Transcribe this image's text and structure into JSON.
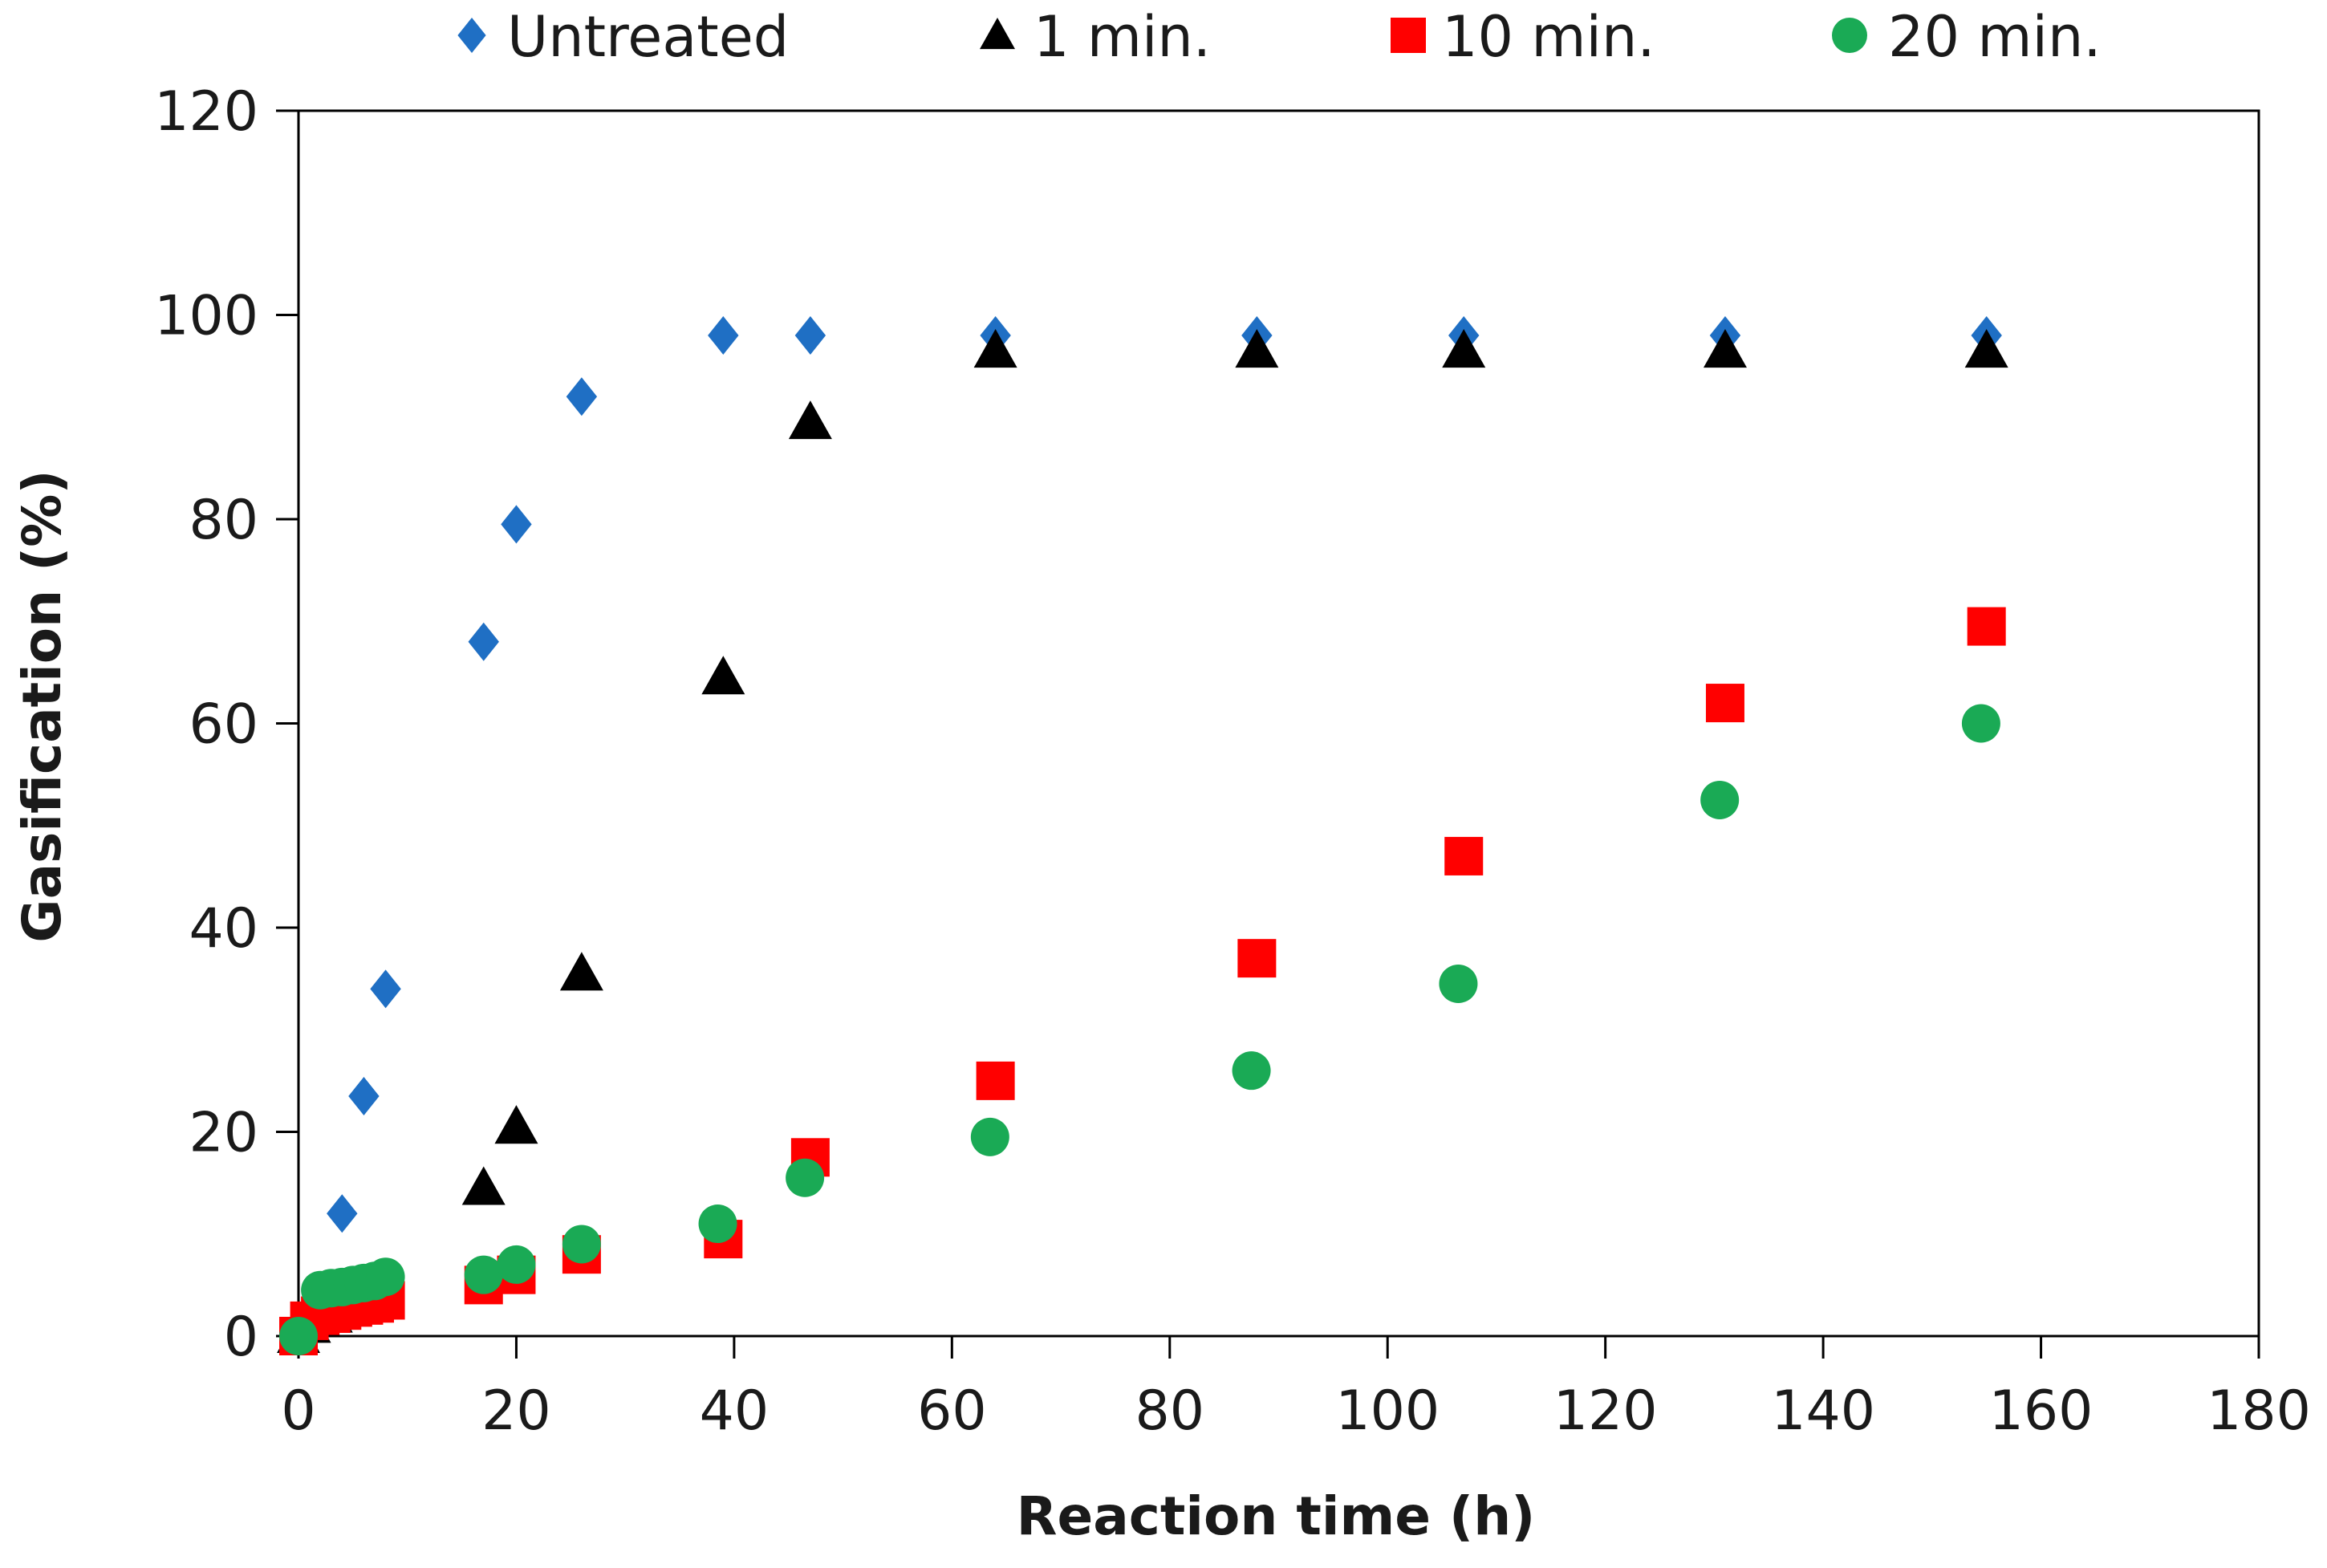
{
  "chart_data": {
    "type": "scatter",
    "title": "",
    "xlabel": "Reaction time (h)",
    "ylabel": "Gasification (%)",
    "xlim": [
      0,
      180
    ],
    "ylim": [
      0,
      120
    ],
    "xticks": [
      0,
      20,
      40,
      60,
      80,
      100,
      120,
      140,
      160,
      180
    ],
    "yticks": [
      0,
      20,
      40,
      60,
      80,
      100,
      120
    ],
    "grid": false,
    "legend_position": "top",
    "series": [
      {
        "name": "Untreated",
        "marker": "diamond",
        "color": "#1f6fc4",
        "x": [
          0,
          4,
          6,
          8,
          17,
          20,
          26,
          39,
          47,
          64,
          88,
          107,
          131,
          155
        ],
        "y": [
          0,
          12,
          23.5,
          34,
          68,
          79.5,
          92,
          98,
          98,
          98,
          98,
          98,
          98,
          98
        ]
      },
      {
        "name": "1 min.",
        "marker": "triangle",
        "color": "#000000",
        "x": [
          0,
          1,
          3,
          17,
          20,
          26,
          39,
          47,
          64,
          88,
          107,
          131,
          155
        ],
        "y": [
          0,
          1,
          2,
          14.5,
          20.5,
          35.5,
          64.5,
          89.5,
          96.5,
          96.5,
          96.5,
          96.5,
          96.5
        ]
      },
      {
        "name": "10 min.",
        "marker": "square",
        "color": "#ff0000",
        "x": [
          0,
          1,
          2,
          3,
          4,
          5,
          6,
          7,
          8,
          17,
          20,
          26,
          39,
          47,
          64,
          88,
          107,
          131,
          155
        ],
        "y": [
          0,
          1.5,
          2,
          2.2,
          2.5,
          2.8,
          3,
          3.2,
          3.5,
          5,
          6,
          8,
          9.5,
          17.5,
          25,
          37,
          47,
          62,
          69.5
        ]
      },
      {
        "name": "20 min.",
        "marker": "circle",
        "color": "#1aaa55",
        "x": [
          0,
          2,
          3,
          4,
          5,
          6,
          7,
          8,
          17,
          20,
          26,
          38.5,
          46.5,
          63.5,
          87.5,
          106.5,
          130.5,
          154.5
        ],
        "y": [
          0,
          4.5,
          4.7,
          4.8,
          5,
          5.2,
          5.4,
          5.8,
          6,
          7,
          9,
          11,
          15.5,
          19.5,
          26,
          34.5,
          52.5,
          60
        ]
      }
    ]
  }
}
